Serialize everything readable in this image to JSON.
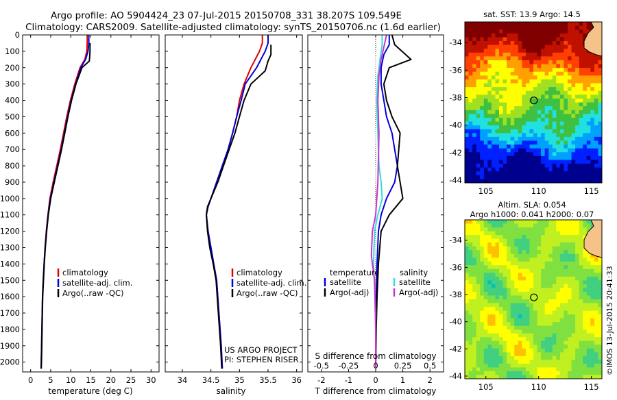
{
  "header": {
    "title_line1": "Argo profile: AO 5904424_23 07-Jul-2015 20150708_331 38.207S 109.549E",
    "title_line2": "Climatology: CARS2009. Satellite-adjusted climatology: synTS_20150706.nc (1.6d earlier)"
  },
  "colors": {
    "climatology": "#e00000",
    "satellite": "#0000dd",
    "argo": "#000000",
    "salinity_satellite": "#33dddd",
    "salinity_argo": "#cc33cc"
  },
  "chart_data": [
    {
      "type": "line",
      "name": "temperature-panel",
      "xlabel": "temperature (deg C)",
      "ylabel": "",
      "xlim": [
        -2,
        32
      ],
      "ylim": [
        2060,
        0
      ],
      "xticks": [
        0,
        5,
        10,
        15,
        20,
        25,
        30
      ],
      "yticks": [
        0,
        100,
        200,
        300,
        400,
        500,
        600,
        700,
        800,
        900,
        1000,
        1100,
        1200,
        1300,
        1400,
        1500,
        1600,
        1700,
        1800,
        1900,
        2000
      ],
      "legend": {
        "position": "lower-middle",
        "entries": [
          "climatology",
          "satellite-adj. clim.",
          "Argo(..raw -QC)"
        ]
      },
      "series": [
        {
          "name": "climatology",
          "x": [
            14.1,
            14.1,
            14.0,
            13.5,
            12.3,
            11.0,
            9.9,
            9.0,
            8.2,
            7.4,
            6.5,
            5.6,
            4.8,
            4.3,
            3.9,
            3.6,
            3.35,
            3.15,
            2.95,
            2.8,
            2.65,
            2.6
          ],
          "y": [
            0,
            50,
            100,
            150,
            200,
            300,
            400,
            500,
            600,
            700,
            800,
            900,
            1000,
            1100,
            1200,
            1300,
            1400,
            1500,
            1600,
            1800,
            2000,
            2040
          ]
        },
        {
          "name": "satellite-adj. clim.",
          "x": [
            14.5,
            14.5,
            14.3,
            13.7,
            12.5,
            11.2,
            10.1,
            9.2,
            8.4,
            7.6,
            6.7,
            5.8,
            4.9,
            4.35,
            3.95,
            3.6,
            3.35,
            3.15,
            2.95,
            2.8,
            2.65,
            2.6
          ],
          "y": [
            0,
            50,
            100,
            150,
            200,
            300,
            400,
            500,
            600,
            700,
            800,
            900,
            1000,
            1100,
            1200,
            1300,
            1400,
            1500,
            1600,
            1800,
            2000,
            2040
          ]
        },
        {
          "name": "Argo(..raw -QC)",
          "x": [
            14.8,
            14.8,
            14.7,
            14.6,
            12.8,
            11.3,
            10.2,
            9.3,
            8.5,
            7.7,
            6.8,
            5.9,
            5.0,
            4.4,
            4.0,
            3.65,
            3.4,
            3.2,
            3.0,
            2.85,
            2.7,
            2.65
          ],
          "y": [
            50,
            100,
            140,
            160,
            200,
            300,
            400,
            500,
            600,
            700,
            800,
            900,
            1000,
            1100,
            1200,
            1300,
            1400,
            1500,
            1600,
            1800,
            2000,
            2040
          ]
        }
      ]
    },
    {
      "type": "line",
      "name": "salinity-panel",
      "xlabel": "salinity",
      "ylabel": "",
      "xlim": [
        33.7,
        36.1
      ],
      "ylim": [
        2060,
        0
      ],
      "xticks": [
        34,
        34.5,
        35,
        35.5,
        36
      ],
      "yticks": [
        0,
        100,
        200,
        300,
        400,
        500,
        600,
        700,
        800,
        900,
        1000,
        1100,
        1200,
        1300,
        1400,
        1500,
        1600,
        1700,
        1800,
        1900,
        2000
      ],
      "legend": {
        "position": "lower-middle",
        "entries": [
          "climatology",
          "satellite-adj. clim.",
          "Argo(..raw -QC)"
        ]
      },
      "annotation": {
        "line1": "US ARGO PROJECT",
        "line2": "PI: STEPHEN RISER"
      },
      "series": [
        {
          "name": "climatology",
          "x": [
            35.4,
            35.4,
            35.35,
            35.2,
            35.08,
            35.0,
            34.95,
            34.88,
            34.8,
            34.7,
            34.6,
            34.5,
            34.45,
            34.42,
            34.45,
            34.5,
            34.55,
            34.6,
            34.64,
            34.68,
            34.7
          ],
          "y": [
            0,
            50,
            100,
            200,
            300,
            400,
            500,
            600,
            700,
            800,
            900,
            1000,
            1050,
            1100,
            1200,
            1300,
            1400,
            1500,
            1700,
            1900,
            2040
          ]
        },
        {
          "name": "satellite-adj. clim.",
          "x": [
            35.5,
            35.5,
            35.45,
            35.3,
            35.1,
            35.03,
            34.95,
            34.88,
            34.8,
            34.7,
            34.6,
            34.5,
            34.45,
            34.42,
            34.45,
            34.5,
            34.55,
            34.6,
            34.64,
            34.68,
            34.7
          ],
          "y": [
            0,
            50,
            100,
            200,
            300,
            400,
            500,
            600,
            700,
            800,
            900,
            1000,
            1050,
            1100,
            1200,
            1300,
            1400,
            1500,
            1700,
            1900,
            2040
          ]
        },
        {
          "name": "Argo(..raw -QC)",
          "x": [
            35.55,
            35.55,
            35.5,
            35.45,
            35.2,
            35.08,
            35.0,
            34.92,
            34.82,
            34.72,
            34.62,
            34.5,
            34.44,
            34.42,
            34.44,
            34.48,
            34.54,
            34.59,
            34.63,
            34.67,
            34.69
          ],
          "y": [
            60,
            120,
            160,
            220,
            300,
            400,
            500,
            600,
            700,
            800,
            900,
            1000,
            1050,
            1100,
            1200,
            1300,
            1400,
            1500,
            1700,
            1900,
            2040
          ]
        }
      ]
    },
    {
      "type": "line",
      "name": "difference-panel",
      "xlabel": "T difference from climatology",
      "top_xlabel": "S difference from climatology",
      "xlim": [
        -2.5,
        2.5
      ],
      "top_xlim": [
        -0.625,
        0.625
      ],
      "ylim": [
        2060,
        0
      ],
      "xticks": [
        -2,
        -1,
        0,
        1,
        2
      ],
      "top_xticks": [
        -0.5,
        -0.25,
        0,
        0.25,
        0.5
      ],
      "xtick_labels": [
        "-2",
        "-1",
        "0",
        "1",
        "2"
      ],
      "top_xtick_labels": [
        "-0.5",
        "-0.25",
        "0",
        "0.25",
        "0.5"
      ],
      "yticks": [
        0,
        100,
        200,
        300,
        400,
        500,
        600,
        700,
        800,
        900,
        1000,
        1100,
        1200,
        1300,
        1400,
        1500,
        1600,
        1700,
        1800,
        1900,
        2000
      ],
      "legend": {
        "position": "lower-middle",
        "temperature_header": "temperature",
        "salinity_header": "salinity",
        "temperature_entries": [
          "satellite",
          "Argo(-adj)"
        ],
        "salinity_entries": [
          "satellite",
          "Argo(-adj)"
        ]
      },
      "series": [
        {
          "name": "temperature satellite",
          "axis": "T",
          "x": [
            0.5,
            0.5,
            0.3,
            0.2,
            0.2,
            0.3,
            0.4,
            0.6,
            0.8,
            0.7,
            0.4,
            0.2,
            0.1,
            0.05,
            0.02,
            0.0,
            0.0
          ],
          "y": [
            0,
            60,
            120,
            200,
            300,
            400,
            500,
            600,
            800,
            900,
            1000,
            1100,
            1200,
            1400,
            1600,
            1800,
            2040
          ]
        },
        {
          "name": "temperature Argo(-adj)",
          "axis": "T",
          "x": [
            0.6,
            0.7,
            1.3,
            0.5,
            0.3,
            0.4,
            0.6,
            0.9,
            0.8,
            0.9,
            1.0,
            0.5,
            0.2,
            0.1,
            0.05,
            0.02,
            0.0
          ],
          "y": [
            0,
            60,
            150,
            200,
            300,
            400,
            500,
            600,
            800,
            900,
            1000,
            1100,
            1200,
            1400,
            1600,
            1800,
            2040
          ]
        },
        {
          "name": "salinity satellite",
          "axis": "S",
          "x": [
            0.06,
            0.06,
            0.04,
            0.02,
            0.01,
            0.02,
            0.03,
            0.05,
            0.06,
            0.02,
            -0.01,
            -0.02,
            0.0,
            0.0
          ],
          "y": [
            0,
            60,
            150,
            250,
            400,
            600,
            800,
            900,
            1000,
            1100,
            1200,
            1400,
            1700,
            2040
          ]
        },
        {
          "name": "salinity Argo(-adj)",
          "axis": "S",
          "x": [
            0.1,
            0.08,
            0.05,
            0.03,
            0.02,
            0.03,
            0.02,
            0.0,
            -0.03,
            -0.04,
            -0.01,
            0.0,
            0.0
          ],
          "y": [
            0,
            60,
            150,
            250,
            400,
            600,
            900,
            1100,
            1200,
            1350,
            1500,
            1800,
            2040
          ]
        }
      ]
    },
    {
      "type": "heatmap",
      "name": "sst-map",
      "title": "sat. SST: 13.9 Argo: 14.5",
      "xlim": [
        103,
        116
      ],
      "ylim": [
        -44.2,
        -32.5
      ],
      "xticks": [
        105,
        110,
        115
      ],
      "yticks": [
        -34,
        -36,
        -38,
        -40,
        -42,
        -44
      ],
      "xtick_labels": [
        "105",
        "110",
        "115"
      ],
      "ytick_labels": [
        "-34",
        "-36",
        "-38",
        "-40",
        "-42",
        "-44"
      ],
      "marker": {
        "lon": 109.549,
        "lat": -38.207
      },
      "colorscale": [
        "#00008f",
        "#0020ff",
        "#00a0ff",
        "#20e0e0",
        "#40c040",
        "#a0e020",
        "#ffff00",
        "#ffa000",
        "#ff4000",
        "#c01000",
        "#800000"
      ]
    },
    {
      "type": "heatmap",
      "name": "sla-map",
      "title": "Altim. SLA: 0.054",
      "subtitle": "Argo h1000: 0.041 h2000: 0.07",
      "xlim": [
        103,
        116
      ],
      "ylim": [
        -44.2,
        -32.5
      ],
      "xticks": [
        105,
        110,
        115
      ],
      "yticks": [
        -34,
        -36,
        -38,
        -40,
        -42,
        -44
      ],
      "xtick_labels": [
        "105",
        "110",
        "115"
      ],
      "ytick_labels": [
        "-34",
        "-36",
        "-38",
        "-40",
        "-42",
        "-44"
      ],
      "marker": {
        "lon": 109.549,
        "lat": -38.207
      },
      "colorscale": [
        "#00c0c0",
        "#40d080",
        "#80e040",
        "#c0f020",
        "#ffff00",
        "#ffc000",
        "#ff8000"
      ]
    }
  ],
  "credit": "©IMOS 13-Jul-2015 20:41:33"
}
